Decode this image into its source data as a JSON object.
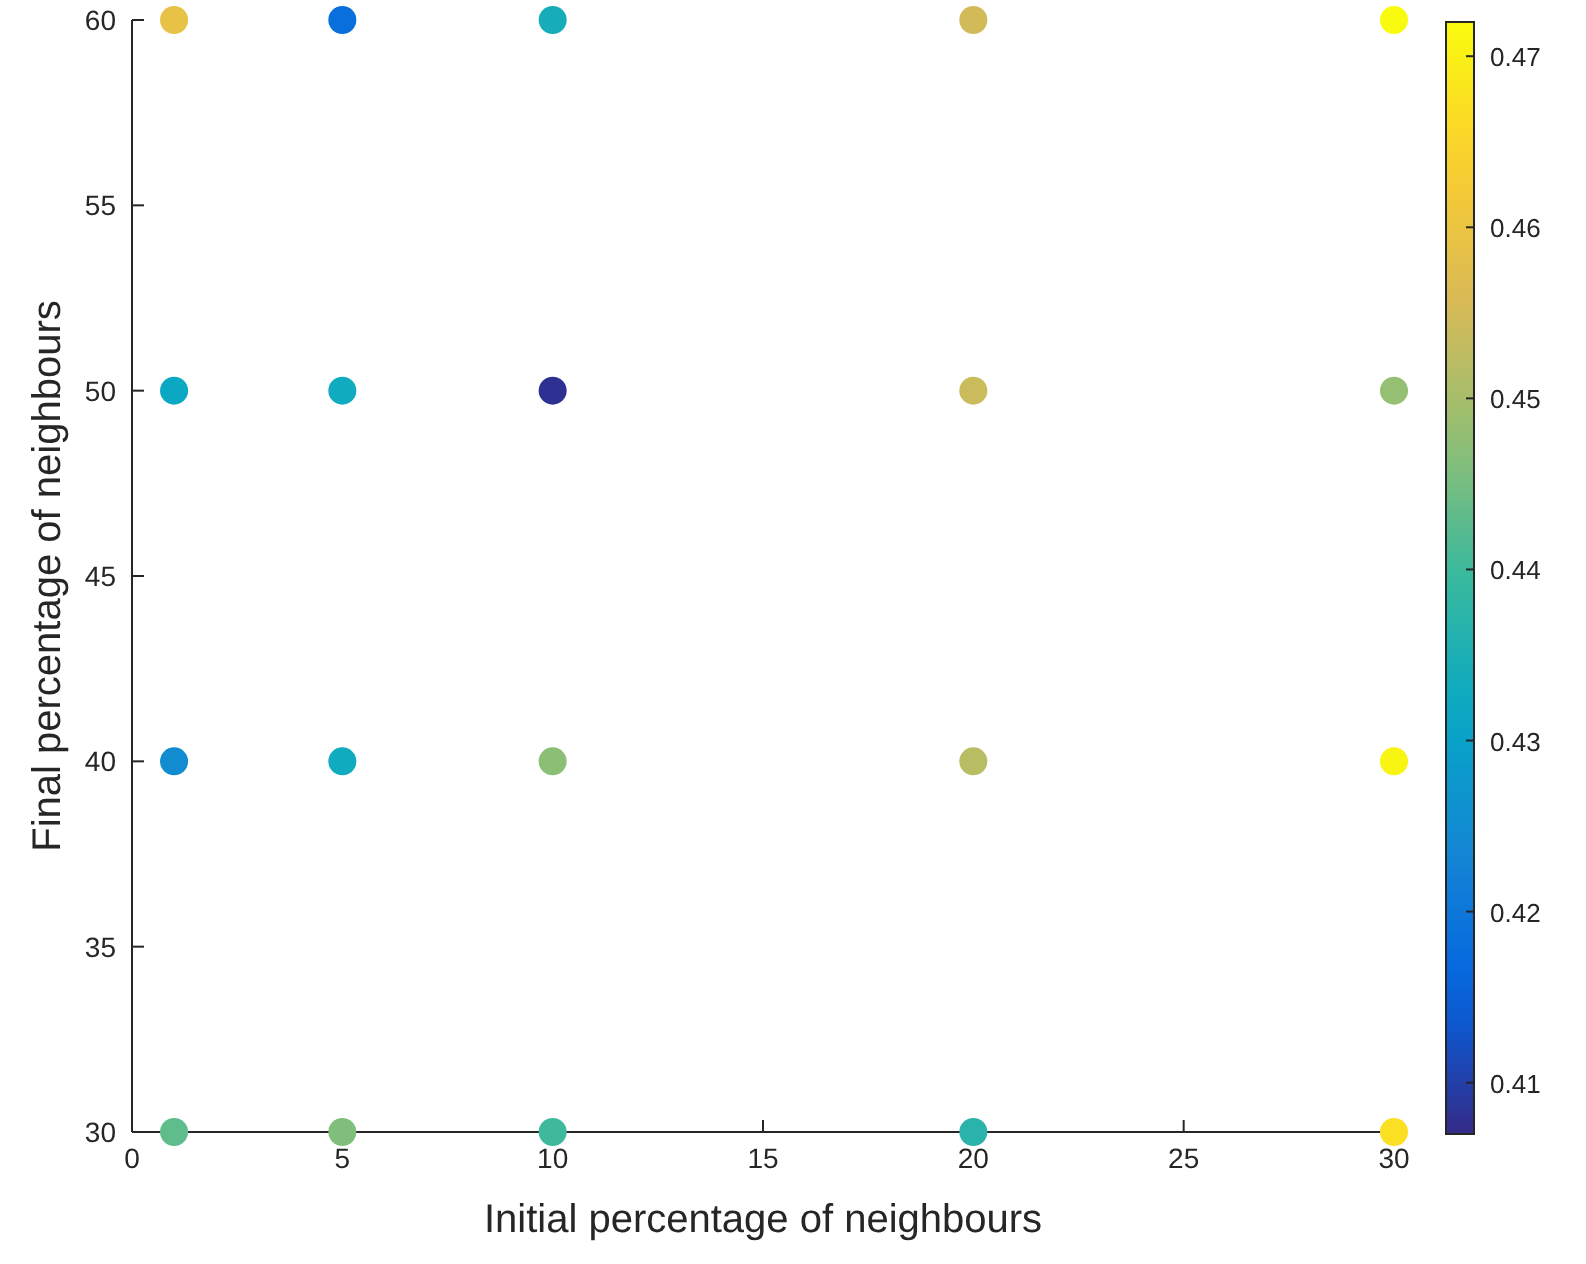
{
  "chart_data": {
    "type": "scatter",
    "xlabel": "Initial percentage of neighbours",
    "ylabel": "Final percentage of neighbours",
    "xlim": [
      0,
      30
    ],
    "xticks": [
      0,
      5,
      10,
      15,
      20,
      25,
      30
    ],
    "ylim": [
      30,
      60
    ],
    "yticks": [
      30,
      35,
      40,
      45,
      50,
      55,
      60
    ],
    "clim": [
      0.407,
      0.472
    ],
    "cticks": [
      0.41,
      0.42,
      0.43,
      0.44,
      0.45,
      0.46,
      0.47
    ],
    "marker": "circle",
    "grid": false,
    "series": [
      {
        "x": [
          1,
          1,
          1,
          1,
          5,
          5,
          5,
          5,
          10,
          10,
          10,
          10,
          20,
          20,
          20,
          20,
          30,
          30,
          30,
          30
        ],
        "values": [
          30,
          40,
          50,
          60,
          30,
          40,
          50,
          60,
          30,
          40,
          50,
          60,
          30,
          40,
          50,
          60,
          30,
          40,
          50,
          60
        ],
        "cvalues": [
          0.443,
          0.425,
          0.432,
          0.459,
          0.446,
          0.433,
          0.433,
          0.418,
          0.44,
          0.447,
          0.408,
          0.434,
          0.437,
          0.452,
          0.454,
          0.455,
          0.467,
          0.471,
          0.448,
          0.472
        ]
      }
    ]
  }
}
